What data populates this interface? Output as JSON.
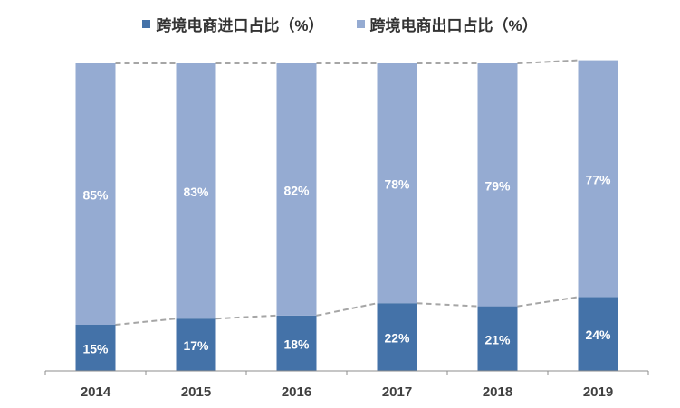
{
  "colors": {
    "import": "#4472a8",
    "export": "#95abd2",
    "axis": "#8c8c8c",
    "dash": "#a6a6a6",
    "label_inner": "#ffffff",
    "tick_text": "#404040"
  },
  "legend": [
    {
      "label": "跨境电商进口占比（%）",
      "color": "#4472a8"
    },
    {
      "label": "跨境电商出口占比（%）",
      "color": "#95abd2"
    }
  ],
  "chart_data": {
    "type": "bar",
    "stacked": "percent",
    "categories": [
      "2014",
      "2015",
      "2016",
      "2017",
      "2018",
      "2019"
    ],
    "series": [
      {
        "name": "跨境电商进口占比（%）",
        "values": [
          15,
          17,
          18,
          22,
          21,
          24
        ],
        "labels": [
          "15%",
          "17%",
          "18%",
          "22%",
          "21%",
          "24%"
        ]
      },
      {
        "name": "跨境电商出口占比（%）",
        "values": [
          85,
          83,
          82,
          78,
          79,
          77
        ],
        "labels": [
          "85%",
          "83%",
          "82%",
          "78%",
          "79%",
          "77%"
        ]
      }
    ],
    "ylim": [
      0,
      100
    ],
    "grid": false,
    "legend_position": "top",
    "series_lines": "dashed"
  }
}
